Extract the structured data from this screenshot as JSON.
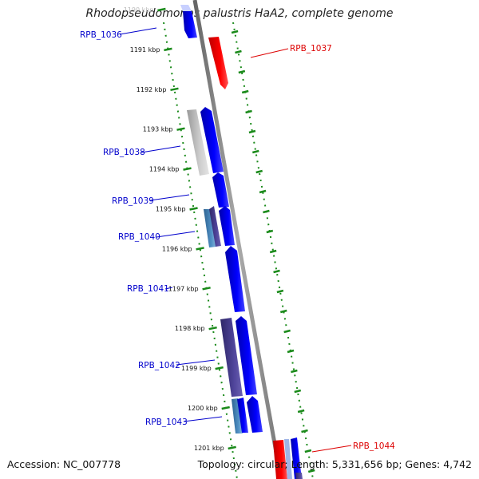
{
  "title": "Rhodopseudomonas palustris HaA2, complete genome",
  "accession": "Accession: NC_007778",
  "topology": "Topology: circular; Length: 5,331,656 bp; Genes: 4,742",
  "kbp_labels": [
    "1190 kbp",
    "1191 kbp",
    "1192 kbp",
    "1193 kbp",
    "1194 kbp",
    "1195 kbp",
    "1196 kbp",
    "1197 kbp",
    "1198 kbp",
    "1199 kbp",
    "1200 kbp",
    "1201 kbp"
  ],
  "genes_left": [
    {
      "name": "RPB_1036",
      "color": "#0000cc"
    },
    {
      "name": "RPB_1038",
      "color": "#0000cc"
    },
    {
      "name": "RPB_1039",
      "color": "#0000cc"
    },
    {
      "name": "RPB_1040",
      "color": "#0000cc"
    },
    {
      "name": "RPB_1041",
      "color": "#0000cc"
    },
    {
      "name": "RPB_1042",
      "color": "#0000cc"
    },
    {
      "name": "RPB_1043",
      "color": "#0000cc"
    }
  ],
  "genes_right": [
    {
      "name": "RPB_1037",
      "color": "#dd0000"
    },
    {
      "name": "RPB_1044",
      "color": "#dd0000"
    }
  ],
  "colors": {
    "forward": "#0000ee",
    "reverse": "#ff0000",
    "gray": "#b8b8b8",
    "purple": "#483d8b",
    "steel": "#4682b4",
    "backbone": "#888888",
    "ticks": "#1a8a1a"
  }
}
